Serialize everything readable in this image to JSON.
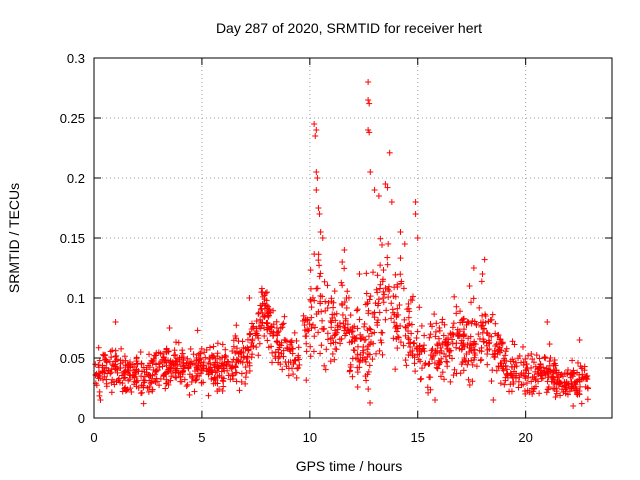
{
  "chart_data": {
    "type": "scatter",
    "title": "Day 287 of 2020, SRMTID for receiver hert",
    "xlabel": "GPS time / hours",
    "ylabel": "SRMTID / TECUs",
    "xlim": [
      0,
      24
    ],
    "ylim": [
      0,
      0.3
    ],
    "xticks": [
      0,
      5,
      10,
      15,
      20
    ],
    "xtick_labels": [
      "0",
      "5",
      "10",
      "15",
      "20"
    ],
    "yticks": [
      0,
      0.05,
      0.1,
      0.15,
      0.2,
      0.25,
      0.3
    ],
    "ytick_labels": [
      "0",
      "0.05",
      "0.1",
      "0.15",
      "0.2",
      "0.25",
      "0.3"
    ],
    "grid": true,
    "marker": "plus",
    "colors": {
      "series": "#ff0000",
      "grid": "#a0a0a0",
      "axes": "#000000"
    },
    "series": [
      {
        "name": "SRMTID",
        "envelope": {
          "description": "approximate median and spread of the point cloud, x in hours, y in TECU",
          "x": [
            0,
            1,
            2,
            3,
            4,
            5,
            6,
            7,
            7.8,
            8.5,
            9.5,
            10.2,
            10.5,
            11.0,
            11.5,
            12.0,
            12.5,
            13.0,
            13.5,
            14.0,
            14.5,
            15.0,
            15.5,
            16.0,
            16.5,
            17.0,
            17.5,
            18.0,
            18.5,
            19.0,
            19.5,
            20.0,
            20.5,
            21.0,
            21.5,
            22.0,
            22.5,
            22.9
          ],
          "median": [
            0.038,
            0.042,
            0.036,
            0.04,
            0.042,
            0.04,
            0.045,
            0.05,
            0.085,
            0.065,
            0.048,
            0.1,
            0.085,
            0.075,
            0.09,
            0.065,
            0.06,
            0.085,
            0.1,
            0.085,
            0.08,
            0.06,
            0.05,
            0.055,
            0.06,
            0.065,
            0.06,
            0.075,
            0.06,
            0.045,
            0.04,
            0.038,
            0.035,
            0.04,
            0.032,
            0.03,
            0.032,
            0.03
          ],
          "spread": [
            0.012,
            0.013,
            0.012,
            0.012,
            0.012,
            0.012,
            0.013,
            0.015,
            0.02,
            0.018,
            0.015,
            0.035,
            0.03,
            0.025,
            0.028,
            0.025,
            0.03,
            0.035,
            0.03,
            0.03,
            0.025,
            0.02,
            0.018,
            0.018,
            0.02,
            0.02,
            0.02,
            0.022,
            0.018,
            0.014,
            0.012,
            0.012,
            0.012,
            0.013,
            0.01,
            0.01,
            0.01,
            0.008
          ],
          "count": 1500
        },
        "highlights": [
          [
            10.2,
            0.245
          ],
          [
            10.3,
            0.24
          ],
          [
            10.25,
            0.235
          ],
          [
            10.3,
            0.205
          ],
          [
            10.35,
            0.2
          ],
          [
            10.3,
            0.19
          ],
          [
            10.4,
            0.175
          ],
          [
            10.45,
            0.17
          ],
          [
            10.5,
            0.155
          ],
          [
            10.6,
            0.15
          ],
          [
            12.7,
            0.28
          ],
          [
            12.7,
            0.265
          ],
          [
            12.75,
            0.262
          ],
          [
            12.7,
            0.24
          ],
          [
            12.75,
            0.238
          ],
          [
            12.8,
            0.205
          ],
          [
            13.0,
            0.19
          ],
          [
            13.2,
            0.185
          ],
          [
            13.5,
            0.195
          ],
          [
            13.6,
            0.192
          ],
          [
            13.7,
            0.221
          ],
          [
            13.8,
            0.18
          ],
          [
            14.2,
            0.155
          ],
          [
            14.9,
            0.18
          ],
          [
            14.9,
            0.17
          ],
          [
            15.0,
            0.15
          ],
          [
            14.4,
            0.145
          ],
          [
            11.6,
            0.14
          ],
          [
            11.5,
            0.13
          ],
          [
            12.3,
            0.12
          ],
          [
            7.8,
            0.105
          ],
          [
            7.9,
            0.102
          ],
          [
            8.0,
            0.098
          ],
          [
            7.2,
            0.1
          ],
          [
            18.1,
            0.132
          ],
          [
            18.0,
            0.12
          ],
          [
            17.6,
            0.125
          ],
          [
            17.4,
            0.11
          ],
          [
            21.0,
            0.08
          ],
          [
            22.5,
            0.065
          ],
          [
            1.0,
            0.08
          ],
          [
            3.5,
            0.075
          ],
          [
            4.8,
            0.073
          ],
          [
            0.3,
            0.015
          ],
          [
            2.3,
            0.012
          ],
          [
            15.8,
            0.015
          ],
          [
            18.5,
            0.015
          ],
          [
            22.2,
            0.01
          ],
          [
            22.6,
            0.012
          ],
          [
            20.3,
            0.02
          ]
        ]
      }
    ]
  }
}
